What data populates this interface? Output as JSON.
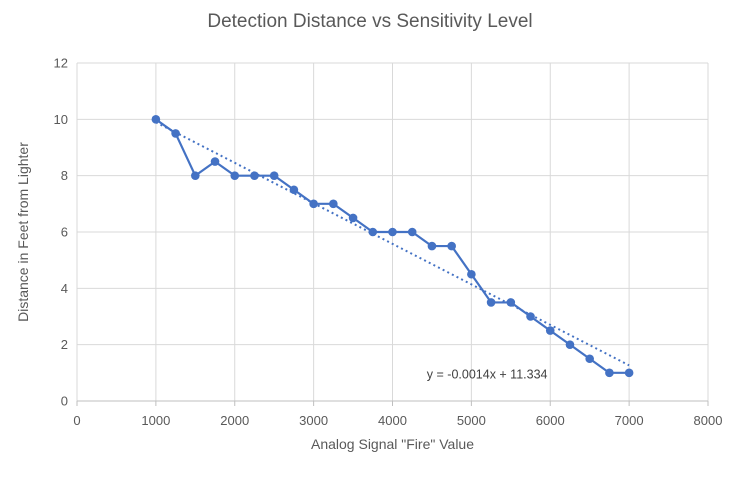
{
  "chart_data": {
    "type": "line",
    "title": "Detection Distance vs Sensitivity Level",
    "xlabel": "Analog Signal \"Fire\" Value",
    "ylabel": "Distance in Feet from Lighter",
    "x": [
      1000,
      1250,
      1500,
      1750,
      2000,
      2250,
      2500,
      2750,
      3000,
      3250,
      3500,
      3750,
      4000,
      4250,
      4500,
      4750,
      5000,
      5250,
      5500,
      5750,
      6000,
      6250,
      6500,
      6750,
      7000
    ],
    "y": [
      10,
      9.5,
      8,
      8.5,
      8,
      8,
      8,
      7.5,
      7,
      7,
      6.5,
      6,
      6,
      6,
      5.5,
      5.5,
      4.5,
      3.5,
      3.5,
      3,
      2.5,
      2,
      1.5,
      1,
      1
    ],
    "xlim": [
      0,
      8000
    ],
    "ylim": [
      0,
      12
    ],
    "xtick_step": 1000,
    "ytick_step": 2,
    "grid": true,
    "legend": false,
    "marker": "circle",
    "trendline": {
      "show": true,
      "fit": "linear",
      "style": "dotted",
      "x_start": 1000,
      "x_end": 7000,
      "label": "y = -0.0014x + 11.334",
      "label_x": 5200,
      "label_y": 0.94
    },
    "colors": {
      "series": "#4472C4",
      "gridline": "#D9D9D9",
      "axis_line": "#BFBFBF",
      "text": "#595959",
      "equation_text": "#404040",
      "background": "#FFFFFF"
    }
  }
}
